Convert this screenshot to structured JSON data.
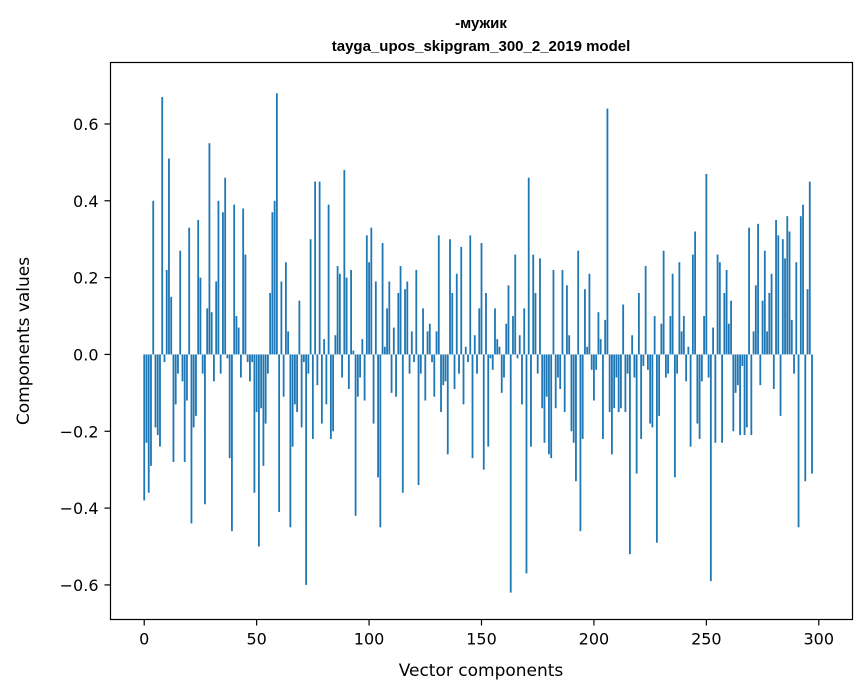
{
  "chart_data": {
    "type": "bar",
    "title": "-мужик",
    "subtitle": "tayga_upos_skipgram_300_2_2019 model",
    "xlabel": "Vector components",
    "ylabel": "Components values",
    "xlim": [
      -15,
      315
    ],
    "ylim": [
      -0.69,
      0.76
    ],
    "xticks": [
      0,
      50,
      100,
      150,
      200,
      250,
      300
    ],
    "yticks": [
      -0.6,
      -0.4,
      -0.2,
      0.0,
      0.2,
      0.4,
      0.6
    ],
    "ytick_labels": [
      "−0.6",
      "−0.4",
      "−0.2",
      "0.0",
      "0.2",
      "0.4",
      "0.6"
    ],
    "xtick_labels": [
      "0",
      "50",
      "100",
      "150",
      "200",
      "250",
      "300"
    ],
    "bar_color": "#1f77b4",
    "values": [
      -0.38,
      -0.23,
      -0.36,
      -0.29,
      0.4,
      -0.19,
      -0.21,
      -0.24,
      0.67,
      -0.02,
      0.22,
      0.51,
      0.15,
      -0.28,
      -0.13,
      -0.05,
      0.27,
      -0.07,
      -0.28,
      -0.12,
      0.33,
      -0.44,
      -0.19,
      -0.16,
      0.35,
      0.2,
      -0.05,
      -0.39,
      0.12,
      0.55,
      0.11,
      -0.07,
      0.19,
      0.4,
      -0.05,
      0.37,
      0.46,
      -0.01,
      -0.27,
      -0.46,
      0.39,
      0.1,
      0.07,
      -0.06,
      0.38,
      0.26,
      -0.02,
      -0.07,
      -0.02,
      -0.36,
      -0.15,
      -0.5,
      -0.14,
      -0.29,
      -0.18,
      -0.05,
      0.16,
      0.37,
      0.4,
      0.68,
      -0.41,
      0.19,
      -0.11,
      0.24,
      0.06,
      -0.45,
      -0.24,
      -0.13,
      -0.15,
      0.14,
      -0.19,
      -0.02,
      -0.6,
      -0.05,
      0.3,
      -0.22,
      0.45,
      -0.08,
      0.45,
      -0.18,
      0.04,
      -0.13,
      0.39,
      -0.22,
      -0.2,
      0.05,
      0.23,
      0.21,
      -0.06,
      0.48,
      0.2,
      -0.09,
      0.22,
      0.01,
      -0.42,
      -0.11,
      -0.06,
      0.04,
      -0.12,
      0.31,
      0.24,
      0.33,
      -0.18,
      0.19,
      -0.32,
      -0.45,
      0.29,
      0.02,
      0.12,
      0.19,
      -0.1,
      0.07,
      -0.11,
      0.16,
      0.23,
      -0.36,
      0.17,
      0.19,
      -0.05,
      0.06,
      -0.02,
      0.22,
      -0.34,
      -0.05,
      0.12,
      -0.12,
      0.06,
      0.08,
      -0.02,
      -0.11,
      0.06,
      0.31,
      -0.15,
      -0.08,
      -0.07,
      -0.26,
      0.3,
      0.16,
      -0.09,
      0.21,
      -0.05,
      0.28,
      -0.13,
      0.02,
      -0.02,
      0.31,
      -0.27,
      0.05,
      -0.05,
      0.12,
      0.29,
      -0.3,
      0.16,
      -0.24,
      -0.01,
      -0.04,
      0.12,
      0.04,
      0.02,
      -0.1,
      -0.06,
      0.08,
      0.18,
      -0.62,
      0.1,
      0.26,
      -0.01,
      0.05,
      -0.13,
      0.12,
      -0.57,
      0.46,
      -0.24,
      0.26,
      0.16,
      -0.05,
      0.25,
      -0.14,
      -0.23,
      -0.11,
      -0.26,
      -0.27,
      0.22,
      -0.14,
      -0.06,
      -0.09,
      0.22,
      -0.15,
      0.18,
      0.05,
      -0.2,
      -0.23,
      -0.33,
      0.27,
      -0.46,
      -0.22,
      0.17,
      0.02,
      0.21,
      -0.04,
      -0.12,
      -0.04,
      0.11,
      0.04,
      -0.22,
      0.09,
      0.64,
      -0.15,
      -0.26,
      -0.14,
      -0.06,
      -0.15,
      -0.14,
      0.13,
      -0.15,
      -0.05,
      -0.52,
      0.05,
      -0.06,
      -0.31,
      0.16,
      -0.22,
      -0.03,
      0.23,
      -0.04,
      -0.18,
      -0.19,
      0.1,
      -0.49,
      -0.16,
      0.08,
      0.27,
      -0.06,
      -0.05,
      0.1,
      0.21,
      -0.32,
      -0.05,
      0.24,
      0.06,
      0.1,
      -0.07,
      0.02,
      -0.24,
      0.26,
      0.32,
      -0.18,
      -0.22,
      -0.07,
      0.1,
      0.47,
      -0.06,
      -0.59,
      0.07,
      -0.23,
      0.26,
      0.24,
      -0.23,
      0.16,
      0.22,
      0.08,
      0.14,
      -0.2,
      -0.1,
      -0.08,
      -0.21,
      -0.03,
      -0.21,
      -0.19,
      0.33,
      -0.21,
      0.06,
      0.18,
      0.34,
      -0.08,
      0.14,
      0.27,
      0.06,
      0.16,
      0.21,
      -0.09,
      0.35,
      0.31,
      -0.16,
      0.3,
      0.25,
      0.36,
      0.32,
      0.09,
      -0.05,
      0.24,
      -0.45,
      0.36,
      0.39,
      -0.33,
      0.17,
      0.45,
      -0.31
    ]
  }
}
